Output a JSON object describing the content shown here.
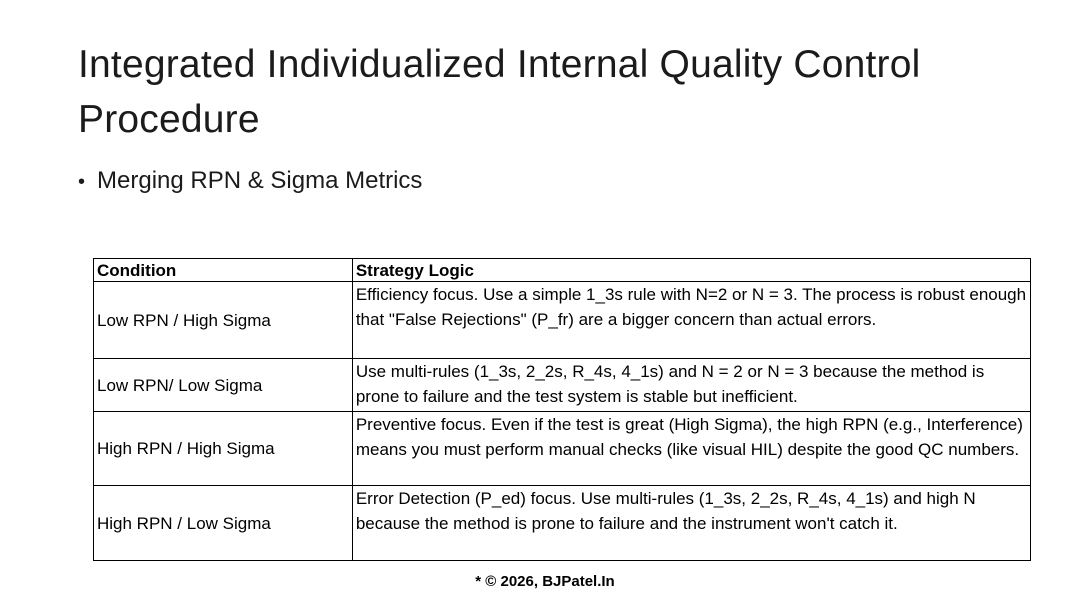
{
  "slide": {
    "title": "Integrated Individualized Internal Quality Control Procedure",
    "bullet_marker": "•",
    "bullets": [
      {
        "label": "Merging RPN & Sigma Metrics"
      }
    ],
    "footnote": "* © 2026, BJPatel.In"
  },
  "table": {
    "headers": [
      "Condition",
      "Strategy Logic"
    ],
    "rows": [
      {
        "condition": "Low RPN / High Sigma",
        "strategy": "Efficiency focus. Use a simple 1_3s rule with N=2 or N = 3. The process is robust enough that \"False Rejections\" (P_fr) are a bigger concern than actual errors."
      },
      {
        "condition": "Low RPN/ Low Sigma",
        "strategy": "Use multi-rules (1_3s, 2_2s, R_4s, 4_1s) and N = 2 or N = 3 because the method is prone to failure and the test system is stable but inefficient."
      },
      {
        "condition": "High RPN / High Sigma",
        "strategy": "Preventive focus. Even if the test is great (High Sigma), the high RPN (e.g., Interference) means you must perform manual checks (like visual HIL) despite the good QC numbers."
      },
      {
        "condition": "High RPN / Low Sigma",
        "strategy": "Error Detection (P_ed) focus. Use multi-rules (1_3s, 2_2s, R_4s, 4_1s) and high N because the method is prone to failure and the instrument won't catch it."
      }
    ]
  },
  "colors": {
    "background": "#ffffff",
    "text": "#000000",
    "border": "#000000"
  }
}
